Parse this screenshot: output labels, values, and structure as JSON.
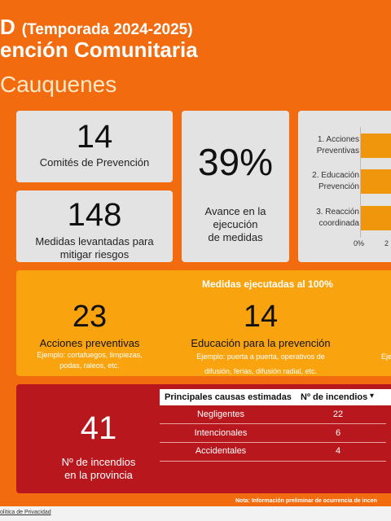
{
  "header": {
    "title_suffix": "D",
    "season": "(Temporada 2024-2025)",
    "subtitle": "ención Comunitaria",
    "province": "Cauquenes"
  },
  "stats": {
    "committees": {
      "value": "14",
      "label": "Comités de Prevención"
    },
    "measures": {
      "value": "148",
      "label_line1": "Medidas levantadas para",
      "label_line2": "mitigar riesgos"
    },
    "progress": {
      "value": "39%",
      "label_line1": "Avance en la",
      "label_line2": "ejecución",
      "label_line3": "de medidas"
    }
  },
  "chart_data": {
    "type": "bar",
    "orientation": "horizontal",
    "categories": [
      "1. Acciones Preventivas",
      "2. Educación Prevención",
      "3. Reacción coordinada"
    ],
    "category_lines": [
      [
        "1. Acciones",
        "Preventivas"
      ],
      [
        "2. Educación",
        "Prevención"
      ],
      [
        "3. Reacción",
        "coordinada"
      ]
    ],
    "tick_labels": [
      "0%",
      "2"
    ],
    "bar_color": "#f0960c"
  },
  "executed": {
    "title": "Medidas ejecutadas al 100%",
    "preventive": {
      "value": "23",
      "label": "Acciones preventivas",
      "example_line1": "Ejemplo: cortafuegos, limpiezas,",
      "example_line2": "podas, raleos, etc."
    },
    "education": {
      "value": "14",
      "label": "Educación para la prevención",
      "example_line1": "Ejemplo: puerta a puerta, operativos de",
      "example_line2": "difusión, ferias, difusión radial, etc."
    },
    "third_example_fragment": "Eje"
  },
  "fires": {
    "value": "41",
    "label_line1": "Nº de incendios",
    "label_line2": "en la provincia",
    "table": {
      "col1": "Principales causas estimadas",
      "col2": "Nº de incendios",
      "sort_icon": "▾",
      "rows": [
        {
          "cause": "Negligentes",
          "count": "22"
        },
        {
          "cause": "Intencionales",
          "count": "6"
        },
        {
          "cause": "Accidentales",
          "count": "4"
        }
      ]
    }
  },
  "note": "Nota: Información preliminar de ocurrencia de incen",
  "footer": {
    "privacy": "olítica de Privacidad"
  },
  "colors": {
    "background": "#f26b0f",
    "card": "#e3e3e3",
    "yellow_panel": "#f9a40f",
    "red_panel": "#b8181d"
  }
}
